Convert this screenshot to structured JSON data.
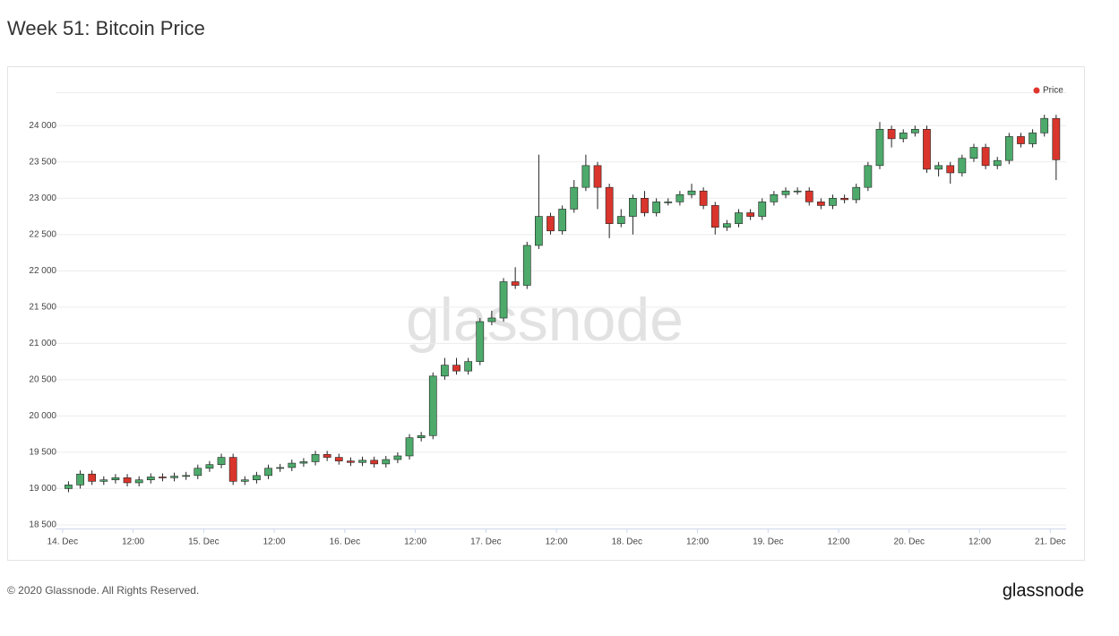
{
  "chart_data": {
    "type": "candlestick",
    "title": "Week 51: Bitcoin Price",
    "name": "Price",
    "legend": "top-right",
    "legend_color": "#e0352b",
    "watermark": "glassnode",
    "up_color": "#4daa6b",
    "down_color": "#d9352c",
    "grid": true,
    "xlim": [
      -1.2,
      170.7
    ],
    "ylim": [
      18450,
      24460
    ],
    "xticks": [
      {
        "value": 0,
        "label": "14. Dec"
      },
      {
        "value": 12,
        "label": "12:00"
      },
      {
        "value": 24,
        "label": "15. Dec"
      },
      {
        "value": 36,
        "label": "12:00"
      },
      {
        "value": 48,
        "label": "16. Dec"
      },
      {
        "value": 60,
        "label": "12:00"
      },
      {
        "value": 72,
        "label": "17. Dec"
      },
      {
        "value": 84,
        "label": "12:00"
      },
      {
        "value": 96,
        "label": "18. Dec"
      },
      {
        "value": 108,
        "label": "12:00"
      },
      {
        "value": 120,
        "label": "19. Dec"
      },
      {
        "value": 132,
        "label": "12:00"
      },
      {
        "value": 144,
        "label": "20. Dec"
      },
      {
        "value": 156,
        "label": "12:00"
      },
      {
        "value": 168,
        "label": "21. Dec"
      }
    ],
    "yticks": [
      {
        "value": 18500,
        "label": "18 500"
      },
      {
        "value": 19000,
        "label": "19 000"
      },
      {
        "value": 19500,
        "label": "19 500"
      },
      {
        "value": 20000,
        "label": "20 000"
      },
      {
        "value": 20500,
        "label": "20 500"
      },
      {
        "value": 21000,
        "label": "21 000"
      },
      {
        "value": 21500,
        "label": "21 500"
      },
      {
        "value": 22000,
        "label": "22 000"
      },
      {
        "value": 22500,
        "label": "22 500"
      },
      {
        "value": 23000,
        "label": "23 000"
      },
      {
        "value": 23500,
        "label": "23 500"
      },
      {
        "value": 24000,
        "label": "24 000"
      }
    ],
    "x": [
      1,
      3,
      5,
      7,
      9,
      11,
      13,
      15,
      17,
      19,
      21,
      23,
      25,
      27,
      29,
      31,
      33,
      35,
      37,
      39,
      41,
      43,
      45,
      47,
      49,
      51,
      53,
      55,
      57,
      59,
      61,
      63,
      65,
      67,
      69,
      71,
      73,
      75,
      77,
      79,
      81,
      83,
      85,
      87,
      89,
      91,
      93,
      95,
      97,
      99,
      101,
      103,
      105,
      107,
      109,
      111,
      113,
      115,
      117,
      119,
      121,
      123,
      125,
      127,
      129,
      131,
      133,
      135,
      137,
      139,
      141,
      143,
      145,
      147,
      149,
      151,
      153,
      155,
      157,
      159,
      161,
      163,
      165,
      167,
      169
    ],
    "open": [
      19000,
      19050,
      19200,
      19100,
      19120,
      19150,
      19080,
      19120,
      19160,
      19150,
      19170,
      19180,
      19280,
      19330,
      19430,
      19100,
      19120,
      19180,
      19280,
      19290,
      19350,
      19370,
      19470,
      19430,
      19380,
      19360,
      19390,
      19340,
      19400,
      19450,
      19700,
      19730,
      20550,
      20700,
      20620,
      20750,
      21300,
      21350,
      21850,
      21800,
      22350,
      22750,
      22550,
      22850,
      23150,
      23450,
      23150,
      22650,
      22750,
      23000,
      22800,
      22950,
      22950,
      23050,
      23100,
      22900,
      22600,
      22650,
      22800,
      22750,
      22950,
      23050,
      23100,
      23100,
      22950,
      22900,
      23000,
      22980,
      23150,
      23450,
      23950,
      23820,
      23900,
      23950,
      23400,
      23450,
      23350,
      23550,
      23700,
      23450,
      23520,
      23850,
      23750,
      23900,
      24100
    ],
    "high": [
      19100,
      19250,
      19250,
      19170,
      19200,
      19200,
      19170,
      19210,
      19210,
      19220,
      19230,
      19330,
      19380,
      19480,
      19480,
      19170,
      19230,
      19330,
      19340,
      19400,
      19420,
      19520,
      19520,
      19480,
      19430,
      19440,
      19440,
      19450,
      19500,
      19750,
      19780,
      20600,
      20800,
      20800,
      20800,
      21350,
      21450,
      21900,
      22050,
      22400,
      23600,
      22800,
      22900,
      23250,
      23600,
      23500,
      23200,
      22850,
      23050,
      23100,
      23000,
      23000,
      23100,
      23200,
      23150,
      22950,
      22700,
      22850,
      22850,
      23000,
      23100,
      23150,
      23150,
      23150,
      23000,
      23050,
      23050,
      23200,
      23500,
      24050,
      24000,
      23950,
      24000,
      24000,
      23500,
      23500,
      23600,
      23750,
      23750,
      23570,
      23900,
      23900,
      23950,
      24150,
      24150
    ],
    "low": [
      18950,
      19000,
      19050,
      19050,
      19070,
      19030,
      19030,
      19070,
      19100,
      19100,
      19120,
      19130,
      19230,
      19280,
      19050,
      19050,
      19070,
      19130,
      19230,
      19240,
      19300,
      19320,
      19380,
      19330,
      19310,
      19310,
      19290,
      19290,
      19350,
      19400,
      19650,
      19680,
      20500,
      20570,
      20570,
      20700,
      21250,
      21300,
      21750,
      21750,
      22300,
      22500,
      22500,
      22800,
      23100,
      22850,
      22450,
      22600,
      22500,
      22750,
      22750,
      22900,
      22900,
      23000,
      22850,
      22500,
      22550,
      22600,
      22700,
      22700,
      22900,
      23000,
      23050,
      22900,
      22850,
      22850,
      22930,
      22930,
      23100,
      23400,
      23700,
      23770,
      23850,
      23350,
      23300,
      23200,
      23300,
      23500,
      23400,
      23400,
      23470,
      23700,
      23700,
      23850,
      23250
    ],
    "close": [
      19050,
      19200,
      19100,
      19120,
      19150,
      19080,
      19120,
      19160,
      19150,
      19170,
      19180,
      19280,
      19330,
      19430,
      19100,
      19120,
      19180,
      19280,
      19290,
      19350,
      19370,
      19470,
      19430,
      19380,
      19360,
      19390,
      19340,
      19400,
      19450,
      19700,
      19730,
      20550,
      20700,
      20620,
      20750,
      21300,
      21350,
      21850,
      21800,
      22350,
      22750,
      22550,
      22850,
      23150,
      23450,
      23150,
      22650,
      22750,
      23000,
      22800,
      22950,
      22950,
      23050,
      23100,
      22900,
      22600,
      22650,
      22800,
      22750,
      22950,
      23050,
      23100,
      23100,
      22950,
      22900,
      23000,
      22980,
      23150,
      23450,
      23950,
      23820,
      23900,
      23950,
      23400,
      23450,
      23350,
      23550,
      23700,
      23450,
      23520,
      23850,
      23750,
      23900,
      24100,
      23530
    ]
  },
  "footer": {
    "copyright": "© 2020 Glassnode. All Rights Reserved.",
    "logo": "glassnode"
  }
}
